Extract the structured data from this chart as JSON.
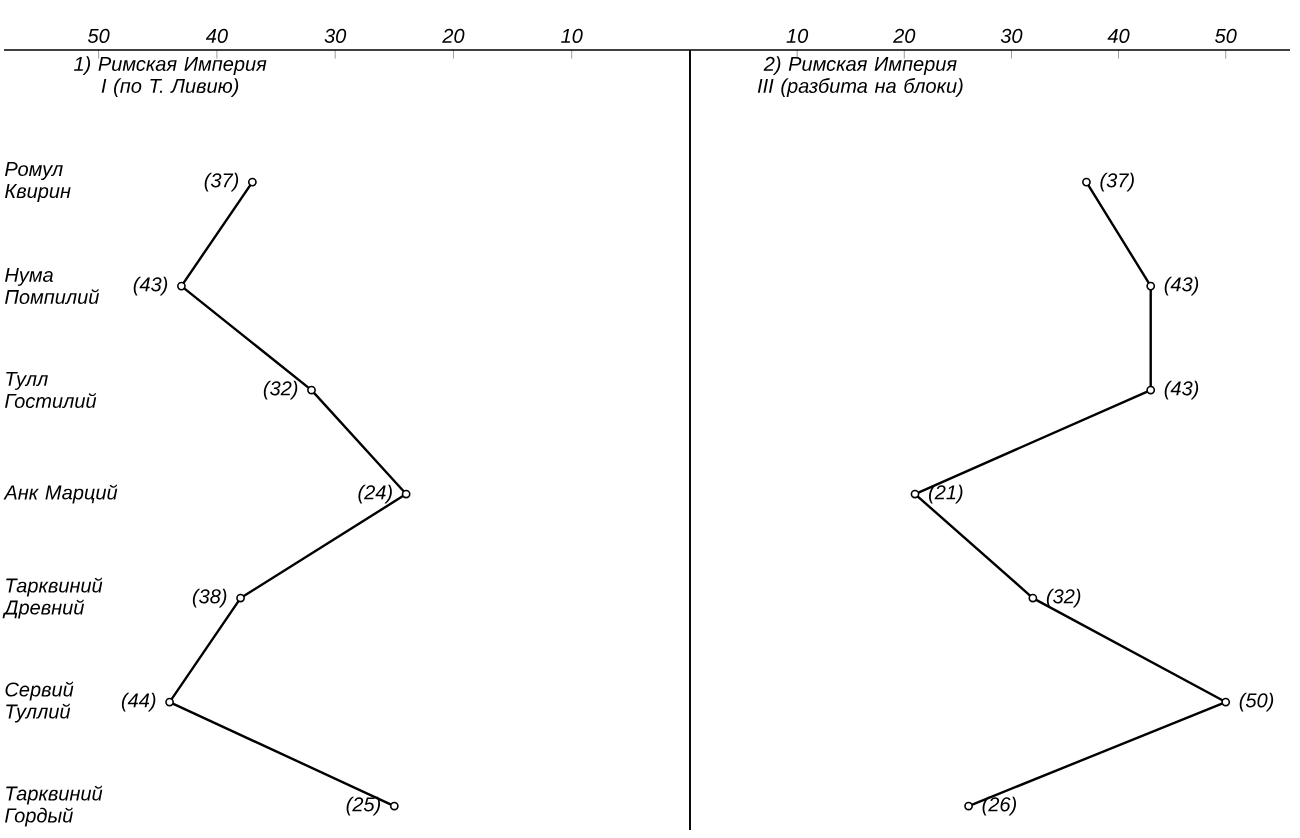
{
  "chart_data": [
    {
      "type": "line",
      "orientation": "horizontal",
      "title": "1) Римская Империя I (по Т. Ливию)",
      "categories": [
        "Ромул Квирин",
        "Нума Помпилий",
        "Тулл Гостилий",
        "Анк Марций",
        "Тарквиний Древний",
        "Сервий Туллий",
        "Тарквиний Гордый"
      ],
      "values": [
        37,
        43,
        32,
        24,
        38,
        44,
        25
      ],
      "value_labels": [
        "(37)",
        "(43)",
        "(32)",
        "(24)",
        "(38)",
        "(44)",
        "(25)"
      ],
      "color": "#000000",
      "marker": "circle",
      "line_style": "solid",
      "xlim": [
        58,
        0
      ],
      "xticks": [
        50,
        40,
        30,
        20,
        10
      ]
    },
    {
      "type": "line",
      "orientation": "horizontal",
      "title": "2) Римская Империя III (разбита на блоки)",
      "categories": [
        null,
        null,
        null,
        null,
        null,
        null,
        null
      ],
      "values": [
        37,
        43,
        43,
        21,
        32,
        50,
        26
      ],
      "value_labels": [
        "(37)",
        "(43)",
        "(43)",
        "(21)",
        "(32)",
        "(50)",
        "(26)"
      ],
      "color": "#000000",
      "marker": "circle",
      "line_style": "solid",
      "xlim": [
        0,
        56
      ],
      "xticks": [
        10,
        20,
        30,
        40,
        50
      ]
    }
  ]
}
